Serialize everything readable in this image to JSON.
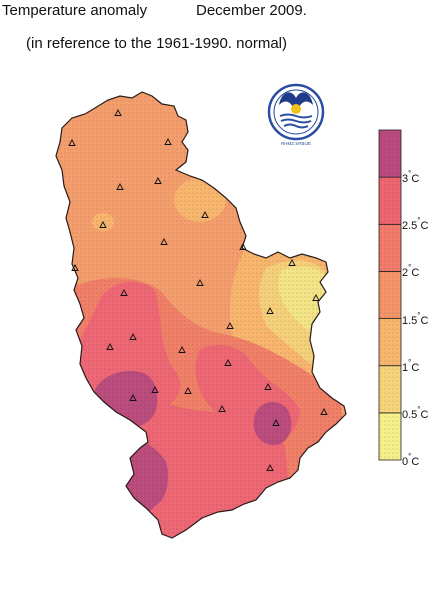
{
  "title": "Temperature anomaly",
  "period": "December 2009.",
  "subtitle": "(in reference to the 1961-1990. normal)",
  "legend": {
    "unit": "C",
    "ticks": [
      "0",
      "0.5",
      "1",
      "1.5",
      "2",
      "2.5",
      "3"
    ],
    "colors": [
      "#f5f08a",
      "#f7d47c",
      "#f6b66e",
      "#f49468",
      "#f27a6b",
      "#ed6571",
      "#b94a7d"
    ]
  },
  "logo_text": "RHMZ SRBIJE",
  "stations_shown": 28
}
